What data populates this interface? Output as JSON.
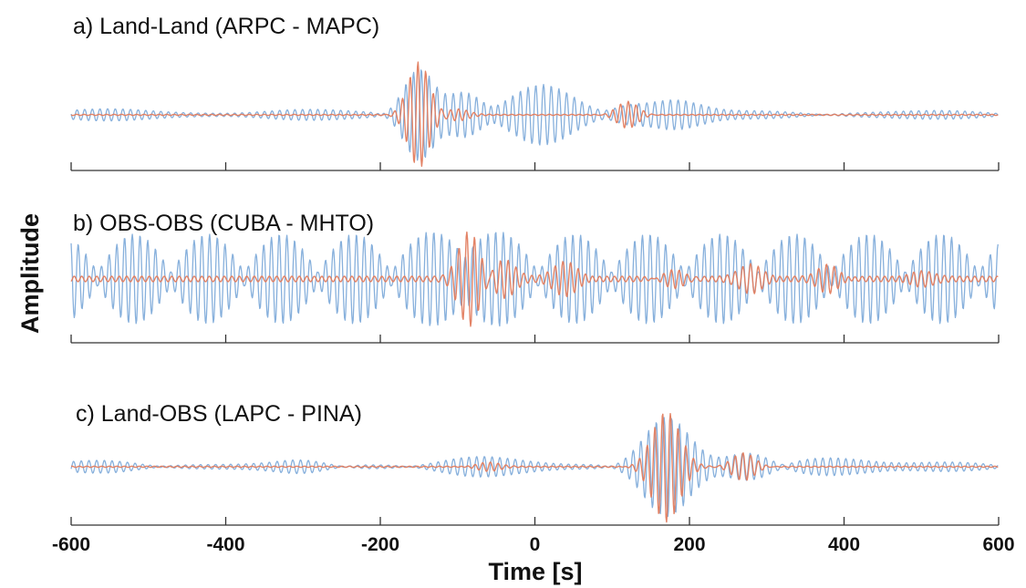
{
  "colors": {
    "series_1": "#7aa7d8",
    "series_2": "#e27c5e"
  },
  "chart_data": {
    "type": "line",
    "xlabel": "Time [s]",
    "ylabel": "Amplitude",
    "xlim": [
      -600,
      600
    ],
    "xticks": [
      -600,
      -400,
      -200,
      0,
      200,
      400,
      600
    ],
    "xtick_labels": [
      "-600",
      "-400",
      "-200",
      "0",
      "200",
      "400",
      "600"
    ],
    "grid": false,
    "panels": [
      {
        "title": "a) Land-Land   (ARPC - MAPC)",
        "show_tick_labels": false,
        "series_1": {
          "freq": 0.1,
          "seed": 1,
          "noise_amp": 0.04,
          "packets": [
            {
              "t": -560,
              "w": 60,
              "a": 0.07
            },
            {
              "t": -300,
              "w": 60,
              "a": 0.06
            },
            {
              "t": -150,
              "w": 20,
              "a": 0.8
            },
            {
              "t": -90,
              "w": 25,
              "a": 0.38
            },
            {
              "t": 10,
              "w": 40,
              "a": 0.5
            },
            {
              "t": 120,
              "w": 25,
              "a": 0.18
            },
            {
              "t": 180,
              "w": 35,
              "a": 0.22
            },
            {
              "t": 320,
              "w": 60,
              "a": 0.07
            },
            {
              "t": 560,
              "w": 60,
              "a": 0.07
            }
          ]
        },
        "series_2": {
          "freq": 0.1,
          "seed": 2,
          "noise_amp": 0.01,
          "packets": [
            {
              "t": -150,
              "w": 14,
              "a": 0.95
            },
            {
              "t": -100,
              "w": 14,
              "a": 0.1
            },
            {
              "t": 120,
              "w": 14,
              "a": 0.25
            }
          ]
        }
      },
      {
        "title": "b) OBS-OBS     (CUBA - MHTO)",
        "show_tick_labels": false,
        "series_1": {
          "freq": 0.1,
          "seed": 3,
          "beat": {
            "amp": 0.7,
            "period": 95,
            "base": 0.12
          },
          "packets": [
            {
              "t": -90,
              "w": 25,
              "a": 0.3
            }
          ]
        },
        "series_2": {
          "freq": 0.1,
          "seed": 4,
          "noise_amp": 0.05,
          "packets": [
            {
              "t": -85,
              "w": 14,
              "a": 0.9
            },
            {
              "t": -40,
              "w": 14,
              "a": 0.35
            },
            {
              "t": 40,
              "w": 15,
              "a": 0.3
            },
            {
              "t": 180,
              "w": 15,
              "a": 0.22
            },
            {
              "t": 280,
              "w": 15,
              "a": 0.25
            },
            {
              "t": 380,
              "w": 14,
              "a": 0.28
            },
            {
              "t": 500,
              "w": 15,
              "a": 0.12
            }
          ]
        }
      },
      {
        "title": "c) Land-OBS    (LAPC - PINA)",
        "show_tick_labels": true,
        "series_1": {
          "freq": 0.1,
          "seed": 5,
          "noise_amp": 0.04,
          "packets": [
            {
              "t": -550,
              "w": 45,
              "a": 0.1
            },
            {
              "t": -300,
              "w": 35,
              "a": 0.14
            },
            {
              "t": -80,
              "w": 50,
              "a": 0.17
            },
            {
              "t": 170,
              "w": 30,
              "a": 0.85
            },
            {
              "t": 280,
              "w": 30,
              "a": 0.25
            },
            {
              "t": 370,
              "w": 55,
              "a": 0.12
            },
            {
              "t": 560,
              "w": 50,
              "a": 0.08
            }
          ]
        },
        "series_2": {
          "freq": 0.1,
          "seed": 6,
          "noise_amp": 0.01,
          "packets": [
            {
              "t": 170,
              "w": 18,
              "a": 0.95
            },
            {
              "t": 270,
              "w": 15,
              "a": 0.25
            },
            {
              "t": -60,
              "w": 15,
              "a": 0.08
            }
          ]
        }
      }
    ]
  }
}
